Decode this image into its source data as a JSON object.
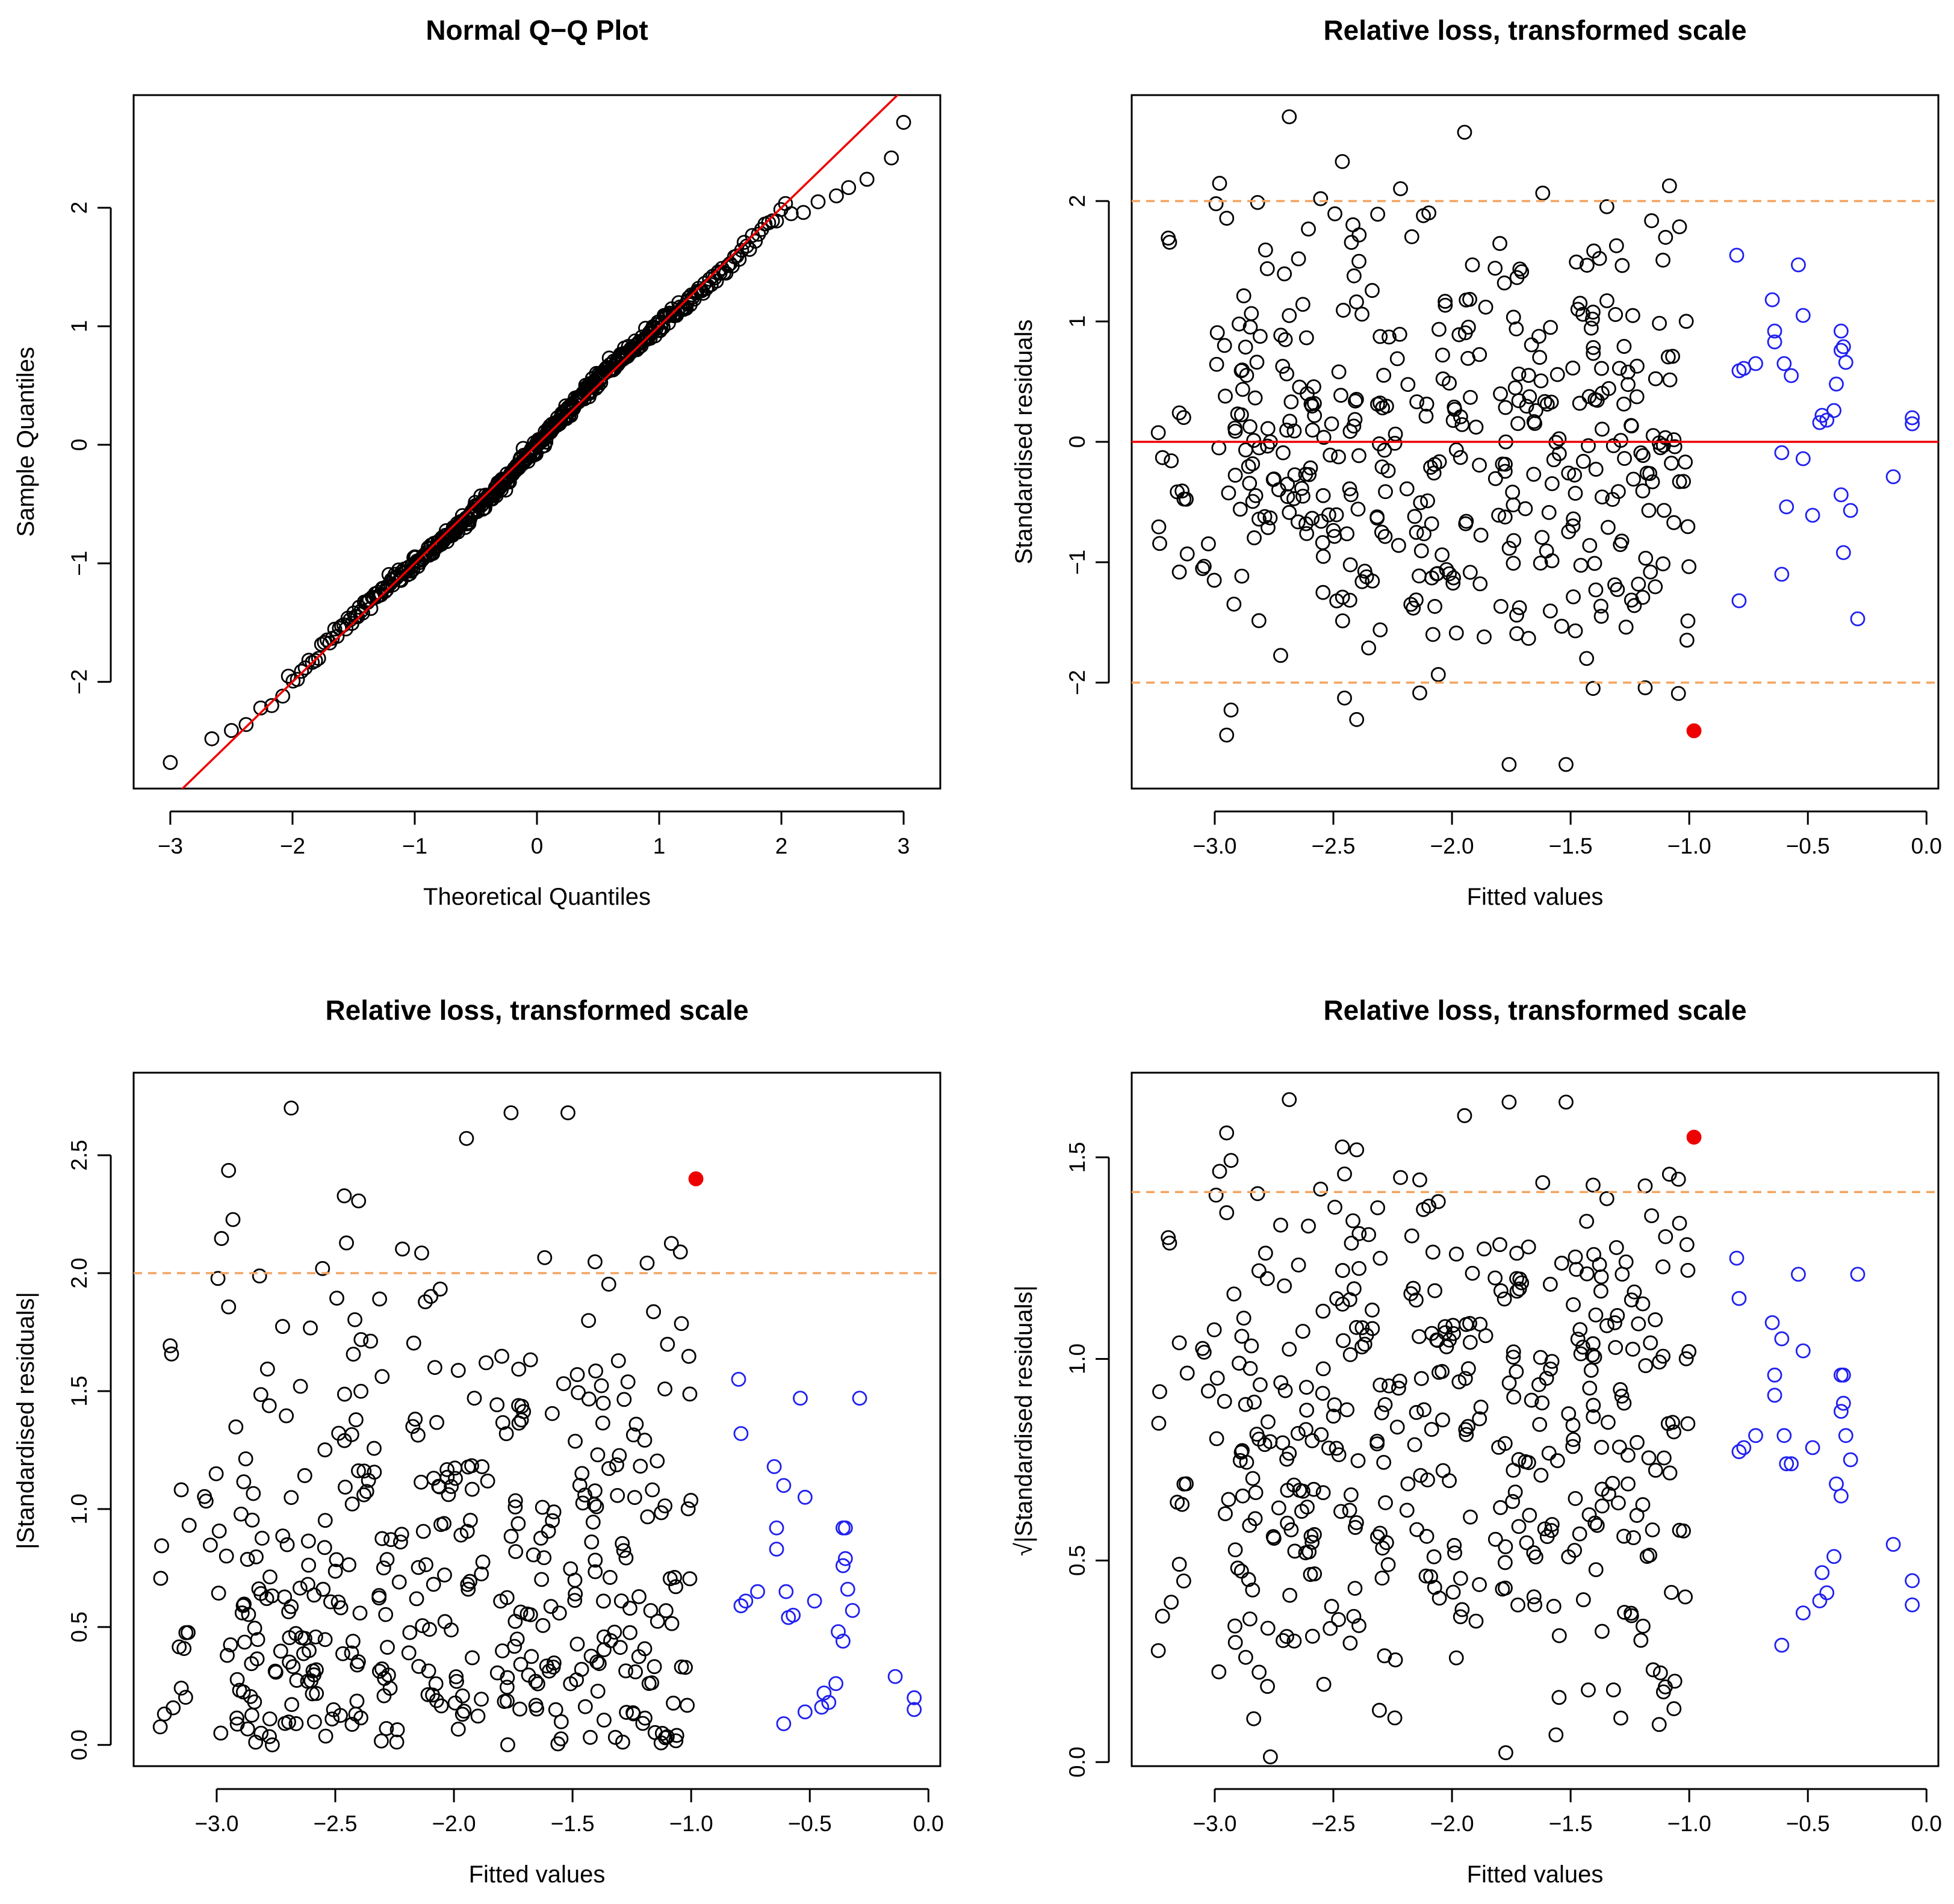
{
  "colors": {
    "axis": "#000000",
    "point": "#000000",
    "highlight": "#2020f0",
    "outlier": "#ee0000",
    "fit_line": "#ee0000",
    "threshold": "#f4a460"
  },
  "chart_data": [
    {
      "type": "scatter",
      "panel": "top-left",
      "title": "Normal Q−Q Plot",
      "xlabel": "Theoretical Quantiles",
      "ylabel": "Sample Quantiles",
      "xlim": [
        -3.3,
        3.3
      ],
      "ylim": [
        -2.9,
        2.95
      ],
      "xticks": [
        -3,
        -2,
        -1,
        0,
        1,
        2,
        3
      ],
      "xtick_labels": [
        "−3",
        "−2",
        "−1",
        "0",
        "1",
        "2",
        "3"
      ],
      "yticks": [
        -2,
        -1,
        0,
        1,
        2
      ],
      "ytick_labels": [
        "−2",
        "−1",
        "0",
        "1",
        "2"
      ],
      "reference_line": {
        "slope": 1.0,
        "intercept": 0.0,
        "color": "#ee0000"
      },
      "n_points": 500,
      "tail_points": [
        [
          -3.0,
          -2.68
        ],
        [
          -2.66,
          -2.48
        ],
        [
          -2.5,
          -2.41
        ],
        [
          -2.38,
          -2.36
        ],
        [
          -2.26,
          -2.22
        ],
        [
          -2.17,
          -2.2
        ],
        [
          -2.08,
          -2.12
        ],
        [
          2.08,
          1.95
        ],
        [
          2.18,
          1.96
        ],
        [
          2.3,
          2.05
        ],
        [
          2.45,
          2.1
        ],
        [
          2.55,
          2.17
        ],
        [
          2.7,
          2.24
        ],
        [
          2.9,
          2.42
        ],
        [
          3.0,
          2.72
        ]
      ]
    },
    {
      "type": "scatter",
      "panel": "top-right",
      "title": "Relative loss, transformed scale",
      "xlabel": "Fitted values",
      "ylabel": "Standardised residuals",
      "xlim": [
        -3.35,
        0.05
      ],
      "ylim": [
        -2.88,
        2.88
      ],
      "xticks": [
        -3.0,
        -2.5,
        -2.0,
        -1.5,
        -1.0,
        -0.5,
        0.0
      ],
      "xtick_labels": [
        "−3.0",
        "−2.5",
        "−2.0",
        "−1.5",
        "−1.0",
        "−0.5",
        "0.0"
      ],
      "yticks": [
        -2,
        -1,
        0,
        1,
        2
      ],
      "ytick_labels": [
        "−2",
        "−1",
        "0",
        "1",
        "2"
      ],
      "hlines": [
        {
          "y": 0,
          "color": "#ee0000",
          "dashed": false
        },
        {
          "y": 2,
          "color": "#f4a460",
          "dashed": true
        },
        {
          "y": -2,
          "color": "#f4a460",
          "dashed": true
        }
      ],
      "n_points": 430,
      "blue_points": [
        [
          -0.8,
          1.55
        ],
        [
          -0.79,
          0.59
        ],
        [
          -0.77,
          0.61
        ],
        [
          -0.72,
          0.65
        ],
        [
          -0.65,
          1.18
        ],
        [
          -0.64,
          0.83
        ],
        [
          -0.64,
          0.92
        ],
        [
          -0.61,
          -0.09
        ],
        [
          -0.6,
          0.65
        ],
        [
          -0.59,
          -0.54
        ],
        [
          -0.57,
          0.55
        ],
        [
          -0.54,
          1.47
        ],
        [
          -0.52,
          1.05
        ],
        [
          -0.52,
          -0.14
        ],
        [
          -0.48,
          -0.61
        ],
        [
          -0.45,
          0.16
        ],
        [
          -0.44,
          0.22
        ],
        [
          -0.42,
          0.18
        ],
        [
          -0.39,
          0.26
        ],
        [
          -0.38,
          0.48
        ],
        [
          -0.36,
          0.92
        ],
        [
          -0.36,
          0.76
        ],
        [
          -0.36,
          -0.44
        ],
        [
          -0.35,
          0.79
        ],
        [
          -0.35,
          -0.92
        ],
        [
          -0.34,
          0.66
        ],
        [
          -0.32,
          -0.57
        ],
        [
          -0.29,
          -1.47
        ],
        [
          -0.14,
          -0.29
        ],
        [
          -0.06,
          0.2
        ],
        [
          -0.06,
          0.15
        ],
        [
          -0.61,
          -1.1
        ],
        [
          -0.79,
          -1.32
        ]
      ],
      "outlier_point": [
        -0.98,
        -2.4
      ]
    },
    {
      "type": "scatter",
      "panel": "bottom-left",
      "title": "Relative loss, transformed scale",
      "xlabel": "Fitted values",
      "ylabel": "|Standardised residuals|",
      "xlim": [
        -3.35,
        0.05
      ],
      "ylim": [
        -0.09,
        2.85
      ],
      "xticks": [
        -3.0,
        -2.5,
        -2.0,
        -1.5,
        -1.0,
        -0.5,
        0.0
      ],
      "xtick_labels": [
        "−3.0",
        "−2.5",
        "−2.0",
        "−1.5",
        "−1.0",
        "−0.5",
        "0.0"
      ],
      "yticks": [
        0.0,
        0.5,
        1.0,
        1.5,
        2.0,
        2.5
      ],
      "ytick_labels": [
        "0.0",
        "0.5",
        "1.0",
        "1.5",
        "2.0",
        "2.5"
      ],
      "hlines": [
        {
          "y": 2,
          "color": "#f4a460",
          "dashed": true
        }
      ],
      "n_points": 430,
      "blue_points": [
        [
          -0.8,
          1.55
        ],
        [
          -0.79,
          0.59
        ],
        [
          -0.77,
          0.61
        ],
        [
          -0.72,
          0.65
        ],
        [
          -0.65,
          1.18
        ],
        [
          -0.64,
          0.83
        ],
        [
          -0.64,
          0.92
        ],
        [
          -0.61,
          0.09
        ],
        [
          -0.6,
          0.65
        ],
        [
          -0.59,
          0.54
        ],
        [
          -0.57,
          0.55
        ],
        [
          -0.54,
          1.47
        ],
        [
          -0.52,
          1.05
        ],
        [
          -0.52,
          0.14
        ],
        [
          -0.48,
          0.61
        ],
        [
          -0.45,
          0.16
        ],
        [
          -0.44,
          0.22
        ],
        [
          -0.42,
          0.18
        ],
        [
          -0.39,
          0.26
        ],
        [
          -0.38,
          0.48
        ],
        [
          -0.36,
          0.92
        ],
        [
          -0.36,
          0.76
        ],
        [
          -0.36,
          0.44
        ],
        [
          -0.35,
          0.79
        ],
        [
          -0.35,
          0.92
        ],
        [
          -0.34,
          0.66
        ],
        [
          -0.32,
          0.57
        ],
        [
          -0.29,
          1.47
        ],
        [
          -0.14,
          0.29
        ],
        [
          -0.06,
          0.2
        ],
        [
          -0.06,
          0.15
        ],
        [
          -0.61,
          1.1
        ],
        [
          -0.79,
          1.32
        ]
      ],
      "outlier_point": [
        -0.98,
        2.4
      ]
    },
    {
      "type": "scatter",
      "panel": "bottom-right",
      "title": "Relative loss, transformed scale",
      "xlabel": "Fitted values",
      "ylabel": "√|Standardised residuals|",
      "xlim": [
        -3.35,
        0.05
      ],
      "ylim": [
        -0.01,
        1.71
      ],
      "xticks": [
        -3.0,
        -2.5,
        -2.0,
        -1.5,
        -1.0,
        -0.5,
        0.0
      ],
      "xtick_labels": [
        "−3.0",
        "−2.5",
        "−2.0",
        "−1.5",
        "−1.0",
        "−0.5",
        "0.0"
      ],
      "yticks": [
        0.0,
        0.5,
        1.0,
        1.5
      ],
      "ytick_labels": [
        "0.0",
        "0.5",
        "1.0",
        "1.5"
      ],
      "hlines": [
        {
          "y": 1.414,
          "color": "#f4a460",
          "dashed": true
        }
      ],
      "n_points": 430,
      "blue_points": [
        [
          -0.8,
          1.25
        ],
        [
          -0.79,
          0.77
        ],
        [
          -0.77,
          0.78
        ],
        [
          -0.72,
          0.81
        ],
        [
          -0.65,
          1.09
        ],
        [
          -0.64,
          0.91
        ],
        [
          -0.64,
          0.96
        ],
        [
          -0.61,
          0.29
        ],
        [
          -0.6,
          0.81
        ],
        [
          -0.59,
          0.74
        ],
        [
          -0.57,
          0.74
        ],
        [
          -0.54,
          1.21
        ],
        [
          -0.52,
          1.02
        ],
        [
          -0.52,
          0.37
        ],
        [
          -0.48,
          0.78
        ],
        [
          -0.45,
          0.4
        ],
        [
          -0.44,
          0.47
        ],
        [
          -0.42,
          0.42
        ],
        [
          -0.39,
          0.51
        ],
        [
          -0.38,
          0.69
        ],
        [
          -0.36,
          0.96
        ],
        [
          -0.36,
          0.87
        ],
        [
          -0.36,
          0.66
        ],
        [
          -0.35,
          0.89
        ],
        [
          -0.35,
          0.96
        ],
        [
          -0.34,
          0.81
        ],
        [
          -0.32,
          0.75
        ],
        [
          -0.29,
          1.21
        ],
        [
          -0.14,
          0.54
        ],
        [
          -0.06,
          0.45
        ],
        [
          -0.06,
          0.39
        ],
        [
          -0.61,
          1.05
        ],
        [
          -0.79,
          1.15
        ]
      ],
      "outlier_point": [
        -0.98,
        1.55
      ]
    }
  ]
}
